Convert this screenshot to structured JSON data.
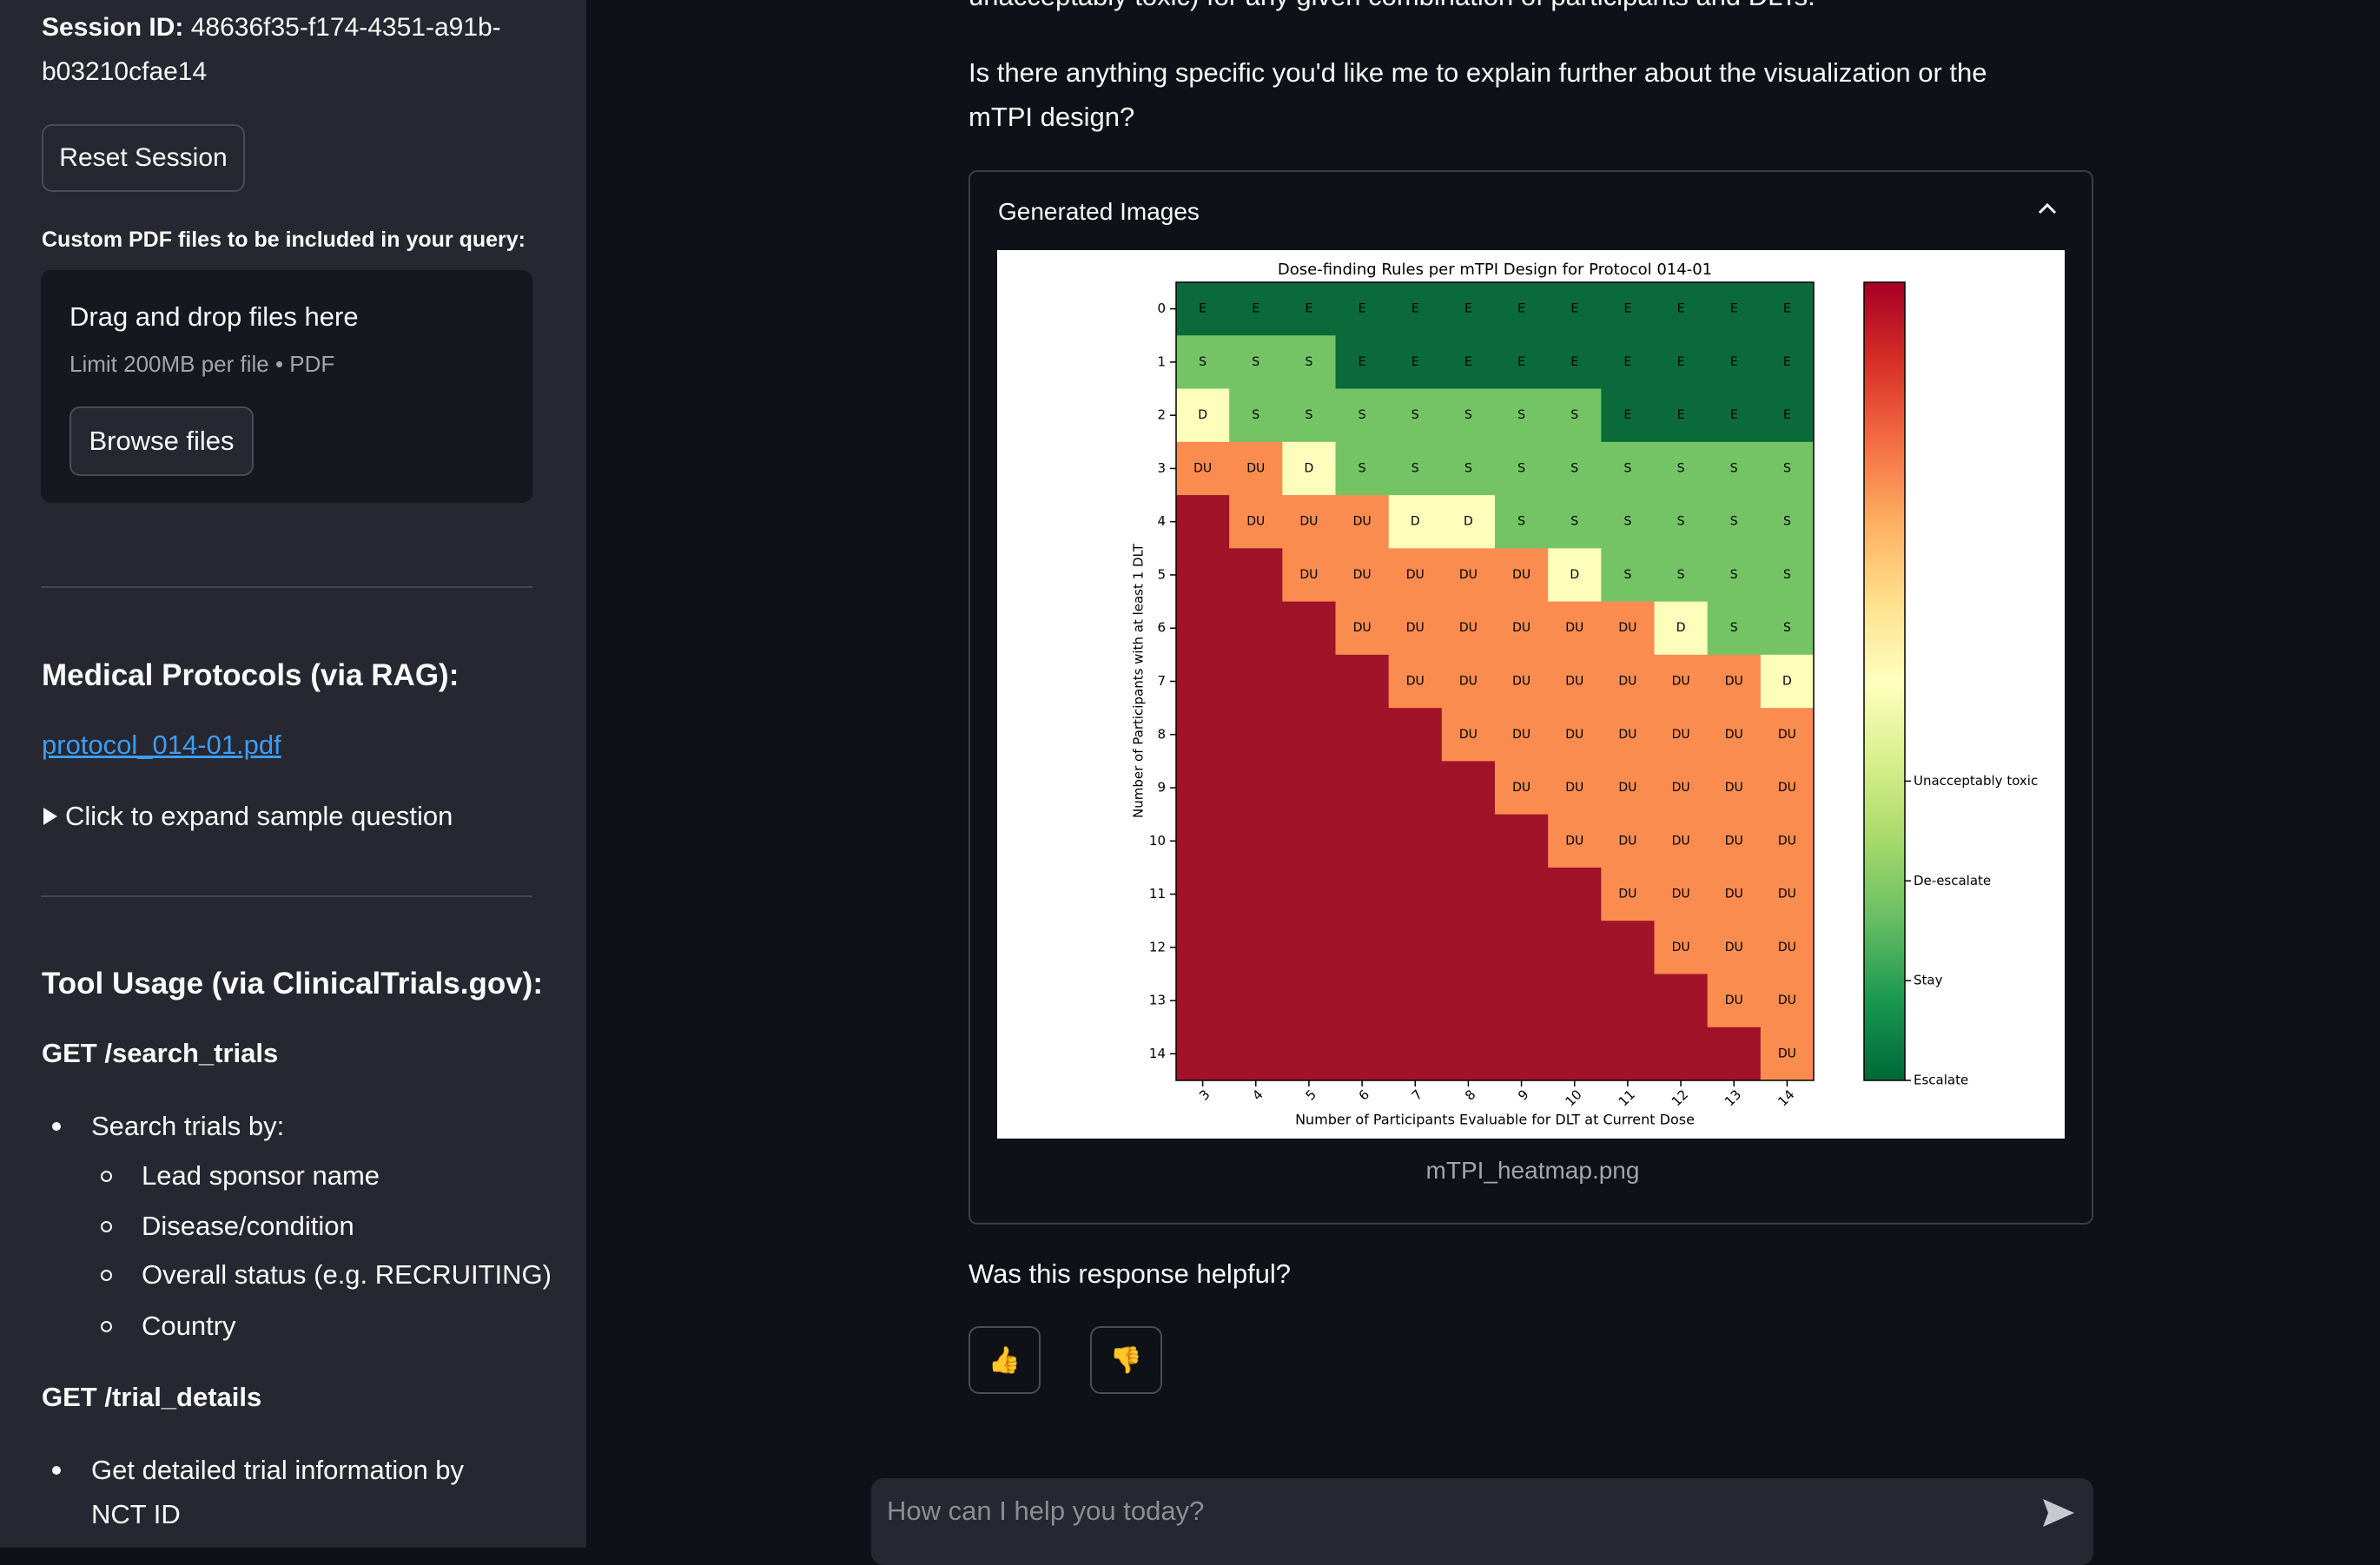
{
  "sidebar": {
    "session_label": "Session ID:",
    "session_id": "48636f35-f174-4351-a91b-b03210cfae14",
    "reset_button": "Reset Session",
    "upload_label": "Custom PDF files to be included in your query:",
    "dropzone_title": "Drag and drop files here",
    "dropzone_limit": "Limit 200MB per file • PDF",
    "browse_button": "Browse files",
    "protocols_heading": "Medical Protocols (via RAG):",
    "protocol_link": "protocol_014-01.pdf",
    "expand_label": "Click to expand sample question",
    "tools_heading": "Tool Usage (via ClinicalTrials.gov):",
    "endpoints": [
      {
        "name": "GET /search_trials",
        "items": [
          {
            "text": "Search trials by:",
            "subitems": [
              "Lead sponsor name",
              "Disease/condition",
              "Overall status (e.g. RECRUITING)",
              "Country"
            ]
          }
        ]
      },
      {
        "name": "GET /trial_details",
        "items": [
          {
            "text": "Get detailed trial information by NCT ID"
          }
        ]
      }
    ]
  },
  "main": {
    "partial_text": "unacceptably toxic) for any given combination of participants and DLTs.",
    "question": "Is there anything specific you'd like me to explain further about the visualization or the mTPI design?",
    "expander_title": "Generated Images",
    "image_caption": "mTPI_heatmap.png",
    "feedback_prompt": "Was this response helpful?",
    "thumbs_up": "👍",
    "thumbs_down": "👎",
    "chat_placeholder": "How can I help you today?"
  },
  "chart_data": {
    "type": "heatmap",
    "title": "Dose-finding Rules per mTPI Design for Protocol 014-01",
    "xlabel": "Number of Participants Evaluable for DLT at Current Dose",
    "ylabel": "Number of Participants with at least 1 DLT",
    "x": [
      3,
      4,
      5,
      6,
      7,
      8,
      9,
      10,
      11,
      12,
      13,
      14
    ],
    "y": [
      0,
      1,
      2,
      3,
      4,
      5,
      6,
      7,
      8,
      9,
      10,
      11,
      12,
      13,
      14
    ],
    "cells": [
      [
        "E",
        "E",
        "E",
        "E",
        "E",
        "E",
        "E",
        "E",
        "E",
        "E",
        "E",
        "E"
      ],
      [
        "S",
        "S",
        "S",
        "E",
        "E",
        "E",
        "E",
        "E",
        "E",
        "E",
        "E",
        "E"
      ],
      [
        "D",
        "S",
        "S",
        "S",
        "S",
        "S",
        "S",
        "S",
        "E",
        "E",
        "E",
        "E"
      ],
      [
        "DU",
        "DU",
        "D",
        "S",
        "S",
        "S",
        "S",
        "S",
        "S",
        "S",
        "S",
        "S"
      ],
      [
        null,
        "DU",
        "DU",
        "DU",
        "D",
        "D",
        "S",
        "S",
        "S",
        "S",
        "S",
        "S"
      ],
      [
        null,
        null,
        "DU",
        "DU",
        "DU",
        "DU",
        "DU",
        "D",
        "S",
        "S",
        "S",
        "S"
      ],
      [
        null,
        null,
        null,
        "DU",
        "DU",
        "DU",
        "DU",
        "DU",
        "DU",
        "D",
        "S",
        "S"
      ],
      [
        null,
        null,
        null,
        null,
        "DU",
        "DU",
        "DU",
        "DU",
        "DU",
        "DU",
        "DU",
        "D"
      ],
      [
        null,
        null,
        null,
        null,
        null,
        "DU",
        "DU",
        "DU",
        "DU",
        "DU",
        "DU",
        "DU"
      ],
      [
        null,
        null,
        null,
        null,
        null,
        null,
        "DU",
        "DU",
        "DU",
        "DU",
        "DU",
        "DU"
      ],
      [
        null,
        null,
        null,
        null,
        null,
        null,
        null,
        "DU",
        "DU",
        "DU",
        "DU",
        "DU"
      ],
      [
        null,
        null,
        null,
        null,
        null,
        null,
        null,
        null,
        "DU",
        "DU",
        "DU",
        "DU"
      ],
      [
        null,
        null,
        null,
        null,
        null,
        null,
        null,
        null,
        null,
        "DU",
        "DU",
        "DU"
      ],
      [
        null,
        null,
        null,
        null,
        null,
        null,
        null,
        null,
        null,
        null,
        "DU",
        "DU"
      ],
      [
        null,
        null,
        null,
        null,
        null,
        null,
        null,
        null,
        null,
        null,
        null,
        "DU"
      ]
    ],
    "colors": {
      "E": "#0a6a39",
      "S": "#74c465",
      "D": "#fdfdbc",
      "DU": "#fa8c4f"
    },
    "null_color": "#a01328",
    "colorbar": {
      "ylim": [
        0,
        8
      ],
      "ticks": [
        {
          "value": 0,
          "label": "Escalate"
        },
        {
          "value": 1,
          "label": "Stay"
        },
        {
          "value": 2,
          "label": "De-escalate"
        },
        {
          "value": 3,
          "label": "Unacceptably toxic"
        }
      ]
    }
  }
}
